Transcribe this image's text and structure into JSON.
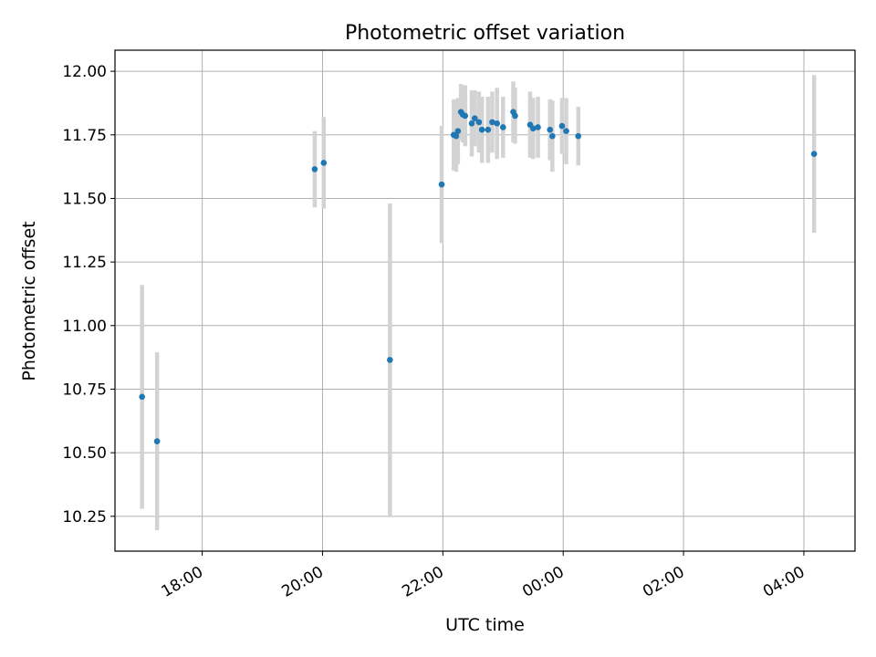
{
  "chart_data": {
    "type": "scatter",
    "title": "Photometric offset variation",
    "xlabel": "UTC time",
    "ylabel": "Photometric offset",
    "x_unit": "hours since 00:00 UTC of first day",
    "xlim": [
      16.55,
      28.85
    ],
    "ylim": [
      10.113,
      12.083
    ],
    "x_ticks": [
      {
        "value": 18,
        "label": "18:00"
      },
      {
        "value": 20,
        "label": "20:00"
      },
      {
        "value": 22,
        "label": "22:00"
      },
      {
        "value": 24,
        "label": "00:00"
      },
      {
        "value": 26,
        "label": "02:00"
      },
      {
        "value": 28,
        "label": "04:00"
      }
    ],
    "y_ticks": [
      {
        "value": 10.25,
        "label": "10.25"
      },
      {
        "value": 10.5,
        "label": "10.50"
      },
      {
        "value": 10.75,
        "label": "10.75"
      },
      {
        "value": 11.0,
        "label": "11.00"
      },
      {
        "value": 11.25,
        "label": "11.25"
      },
      {
        "value": 11.5,
        "label": "11.50"
      },
      {
        "value": 11.75,
        "label": "11.75"
      },
      {
        "value": 12.0,
        "label": "12.00"
      }
    ],
    "grid": true,
    "legend": "none",
    "colors": {
      "point": "#1f77b4",
      "errorbar": "#d3d3d3"
    },
    "series": [
      {
        "points": [
          {
            "x": 17.0,
            "y": 10.72,
            "err": 0.44
          },
          {
            "x": 17.25,
            "y": 10.545,
            "err": 0.35
          },
          {
            "x": 19.87,
            "y": 11.615,
            "err": 0.15
          },
          {
            "x": 20.02,
            "y": 11.64,
            "err": 0.18
          },
          {
            "x": 21.12,
            "y": 10.865,
            "err": 0.615
          },
          {
            "x": 21.98,
            "y": 11.555,
            "err": 0.23
          },
          {
            "x": 22.18,
            "y": 11.75,
            "err": 0.14
          },
          {
            "x": 22.22,
            "y": 11.745,
            "err": 0.14
          },
          {
            "x": 22.25,
            "y": 11.765,
            "err": 0.13
          },
          {
            "x": 22.3,
            "y": 11.84,
            "err": 0.11
          },
          {
            "x": 22.33,
            "y": 11.83,
            "err": 0.11
          },
          {
            "x": 22.37,
            "y": 11.825,
            "err": 0.12
          },
          {
            "x": 22.48,
            "y": 11.795,
            "err": 0.13
          },
          {
            "x": 22.53,
            "y": 11.815,
            "err": 0.11
          },
          {
            "x": 22.6,
            "y": 11.8,
            "err": 0.12
          },
          {
            "x": 22.65,
            "y": 11.77,
            "err": 0.13
          },
          {
            "x": 22.75,
            "y": 11.77,
            "err": 0.13
          },
          {
            "x": 22.82,
            "y": 11.8,
            "err": 0.12
          },
          {
            "x": 22.9,
            "y": 11.795,
            "err": 0.14
          },
          {
            "x": 23.0,
            "y": 11.78,
            "err": 0.12
          },
          {
            "x": 23.17,
            "y": 11.84,
            "err": 0.12
          },
          {
            "x": 23.2,
            "y": 11.825,
            "err": 0.11
          },
          {
            "x": 23.45,
            "y": 11.79,
            "err": 0.13
          },
          {
            "x": 23.5,
            "y": 11.775,
            "err": 0.12
          },
          {
            "x": 23.58,
            "y": 11.78,
            "err": 0.12
          },
          {
            "x": 23.78,
            "y": 11.77,
            "err": 0.12
          },
          {
            "x": 23.82,
            "y": 11.745,
            "err": 0.14
          },
          {
            "x": 23.98,
            "y": 11.785,
            "err": 0.11
          },
          {
            "x": 24.05,
            "y": 11.765,
            "err": 0.13
          },
          {
            "x": 24.25,
            "y": 11.745,
            "err": 0.115
          },
          {
            "x": 28.17,
            "y": 11.675,
            "err": 0.31
          }
        ]
      }
    ]
  }
}
